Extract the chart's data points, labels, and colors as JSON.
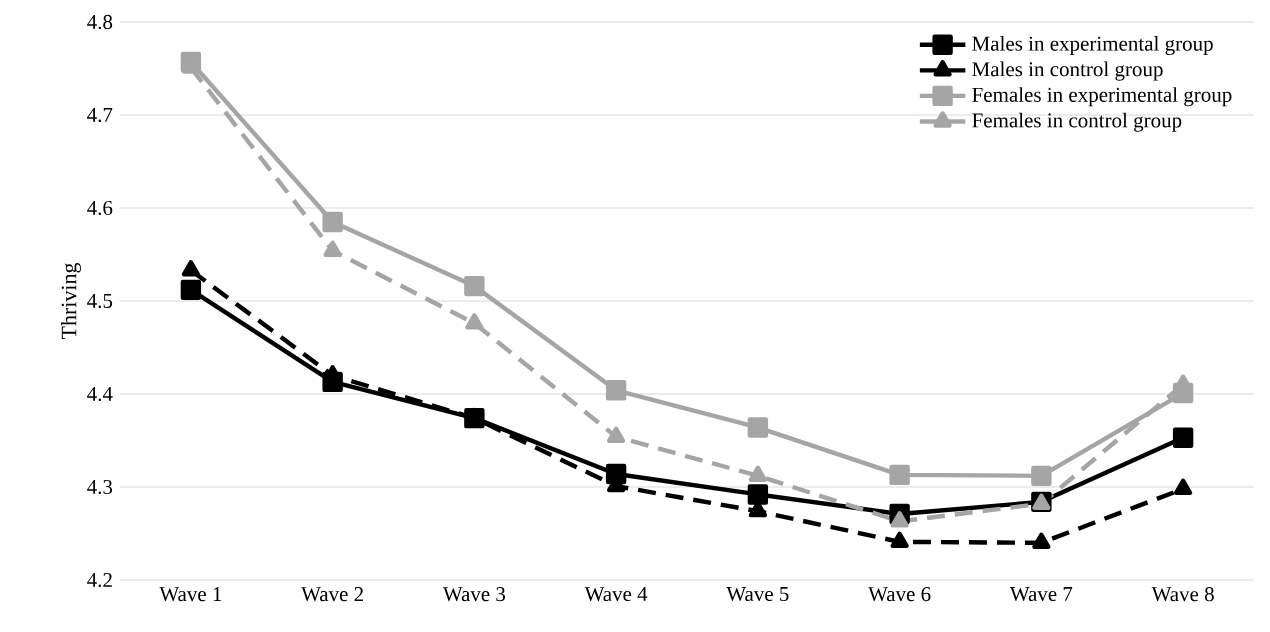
{
  "chart_data": {
    "type": "line",
    "ylabel": "Thriving",
    "categories": [
      "Wave 1",
      "Wave 2",
      "Wave 3",
      "Wave 4",
      "Wave 5",
      "Wave 6",
      "Wave 7",
      "Wave 8"
    ],
    "series": [
      {
        "name": "Males in experimental group",
        "color": "#000000",
        "marker": "square",
        "line_style": "solid",
        "values": [
          4.512,
          4.413,
          4.374,
          4.314,
          4.292,
          4.271,
          4.284,
          4.353
        ]
      },
      {
        "name": "Males in control group",
        "color": "#000000",
        "marker": "triangle",
        "line_style": "dashed",
        "values": [
          4.533,
          4.42,
          4.374,
          4.301,
          4.274,
          4.241,
          4.24,
          4.298
        ]
      },
      {
        "name": "Females in experimental group",
        "color": "#a5a5a5",
        "marker": "square",
        "line_style": "solid",
        "values": [
          4.757,
          4.585,
          4.516,
          4.404,
          4.364,
          4.313,
          4.312,
          4.401
        ]
      },
      {
        "name": "Females in control group",
        "color": "#a5a5a5",
        "marker": "triangle",
        "line_style": "dashed",
        "values": [
          4.751,
          4.554,
          4.476,
          4.354,
          4.312,
          4.263,
          4.282,
          4.41
        ]
      }
    ],
    "ylim": [
      4.2,
      4.8
    ],
    "yticks": [
      4.2,
      4.3,
      4.4,
      4.5,
      4.6,
      4.7,
      4.8
    ],
    "grid": "y",
    "legend": "top right"
  }
}
